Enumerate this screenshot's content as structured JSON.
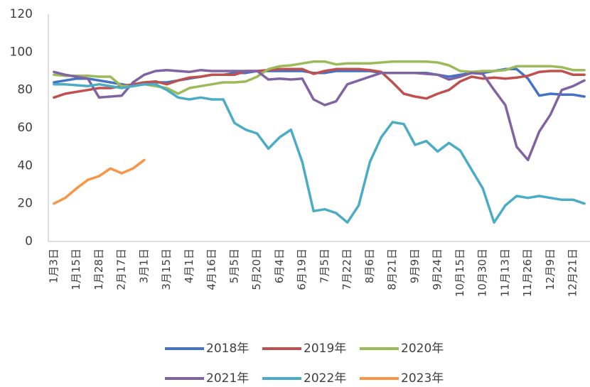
{
  "chart_data": {
    "type": "line",
    "categories": [
      "1月3日",
      null,
      "1月15日",
      null,
      "1月28日",
      null,
      "2月17日",
      null,
      "3月1日",
      null,
      "3月15日",
      null,
      "4月1日",
      null,
      "4月16日",
      null,
      "5月5日",
      null,
      "5月20日",
      null,
      "6月4日",
      null,
      "6月19日",
      null,
      "7月5日",
      null,
      "7月22日",
      null,
      "8月6日",
      null,
      "8月21日",
      null,
      "9月9日",
      null,
      "9月24日",
      null,
      "10月15日",
      null,
      "10月30日",
      null,
      "11月13日",
      null,
      "11月26日",
      null,
      "12月9日",
      null,
      "12月21日",
      null
    ],
    "series": [
      {
        "name": "2018年",
        "color": "#4472c4",
        "values": [
          84,
          85,
          86,
          86,
          85,
          84,
          83,
          82,
          83,
          84,
          84,
          85,
          86,
          87,
          88,
          88,
          89,
          89,
          90,
          90,
          90,
          90,
          90,
          89,
          89,
          90,
          90,
          90,
          90,
          89,
          89,
          89,
          89,
          89,
          88,
          87,
          88,
          89,
          89,
          90,
          91,
          91,
          86,
          77,
          78,
          77.5,
          77.5,
          76.5
        ]
      },
      {
        "name": "2019年",
        "color": "#c0504d",
        "values": [
          76,
          78,
          79,
          80,
          81,
          81,
          82,
          83,
          84,
          84.5,
          83,
          85,
          86.5,
          87,
          88,
          88,
          88,
          90,
          90,
          90.5,
          91,
          91,
          91,
          88.5,
          90,
          91,
          91,
          91,
          90.5,
          89.5,
          84,
          78,
          76.5,
          75.5,
          78,
          80,
          84.5,
          87,
          86,
          86.5,
          86,
          86.5,
          87.5,
          89.5,
          90,
          90,
          88,
          88
        ]
      },
      {
        "name": "2020年",
        "color": "#9bbb59",
        "values": [
          88,
          87.5,
          87.5,
          87.5,
          87,
          87,
          82,
          82,
          83,
          82,
          81,
          78,
          81,
          82,
          83,
          84,
          84,
          84.5,
          87,
          91,
          92.5,
          93,
          94,
          95,
          95,
          93.5,
          94,
          94,
          94,
          94.5,
          95,
          95,
          95,
          95,
          94.5,
          93,
          90,
          89.5,
          90,
          90,
          90.5,
          92.5,
          92.5,
          92.5,
          92.5,
          92,
          90.5,
          90.5
        ]
      },
      {
        "name": "2021年",
        "color": "#8064a2",
        "values": [
          89.5,
          88,
          87,
          86,
          76,
          76.5,
          77,
          84,
          88,
          90,
          90.5,
          90,
          89.5,
          90.5,
          90,
          90,
          90,
          90,
          90,
          85.5,
          86,
          85.5,
          86,
          75,
          72,
          74,
          83,
          85,
          87,
          89,
          89,
          89,
          89,
          88.5,
          88,
          85.5,
          87,
          89,
          88.5,
          80,
          72,
          50,
          43,
          58,
          67,
          80,
          82,
          85
        ]
      },
      {
        "name": "2022年",
        "color": "#4bacc6",
        "values": [
          83,
          83,
          82.5,
          82,
          83,
          82,
          81,
          82,
          83,
          83,
          80,
          76,
          75,
          76,
          75,
          75,
          62.5,
          59,
          57,
          49,
          55,
          59,
          42,
          16,
          17,
          15,
          10,
          19,
          42,
          55,
          63,
          62,
          51,
          53,
          47.5,
          52,
          48,
          38,
          28,
          10,
          19,
          24,
          23,
          24,
          23,
          22,
          22,
          20
        ]
      },
      {
        "name": "2023年",
        "color": "#f79646",
        "values": [
          20,
          23,
          28,
          32.5,
          34.5,
          38.5,
          36,
          38.5,
          43,
          null,
          null,
          null,
          null,
          null,
          null,
          null,
          null,
          null,
          null,
          null,
          null,
          null,
          null,
          null,
          null,
          null,
          null,
          null,
          null,
          null,
          null,
          null,
          null,
          null,
          null,
          null,
          null,
          null,
          null,
          null,
          null,
          null,
          null,
          null,
          null,
          null,
          null,
          null
        ]
      }
    ],
    "ylim": [
      0,
      120
    ],
    "yticks": [
      0,
      20,
      40,
      60,
      80,
      100,
      120
    ],
    "grid": false
  }
}
